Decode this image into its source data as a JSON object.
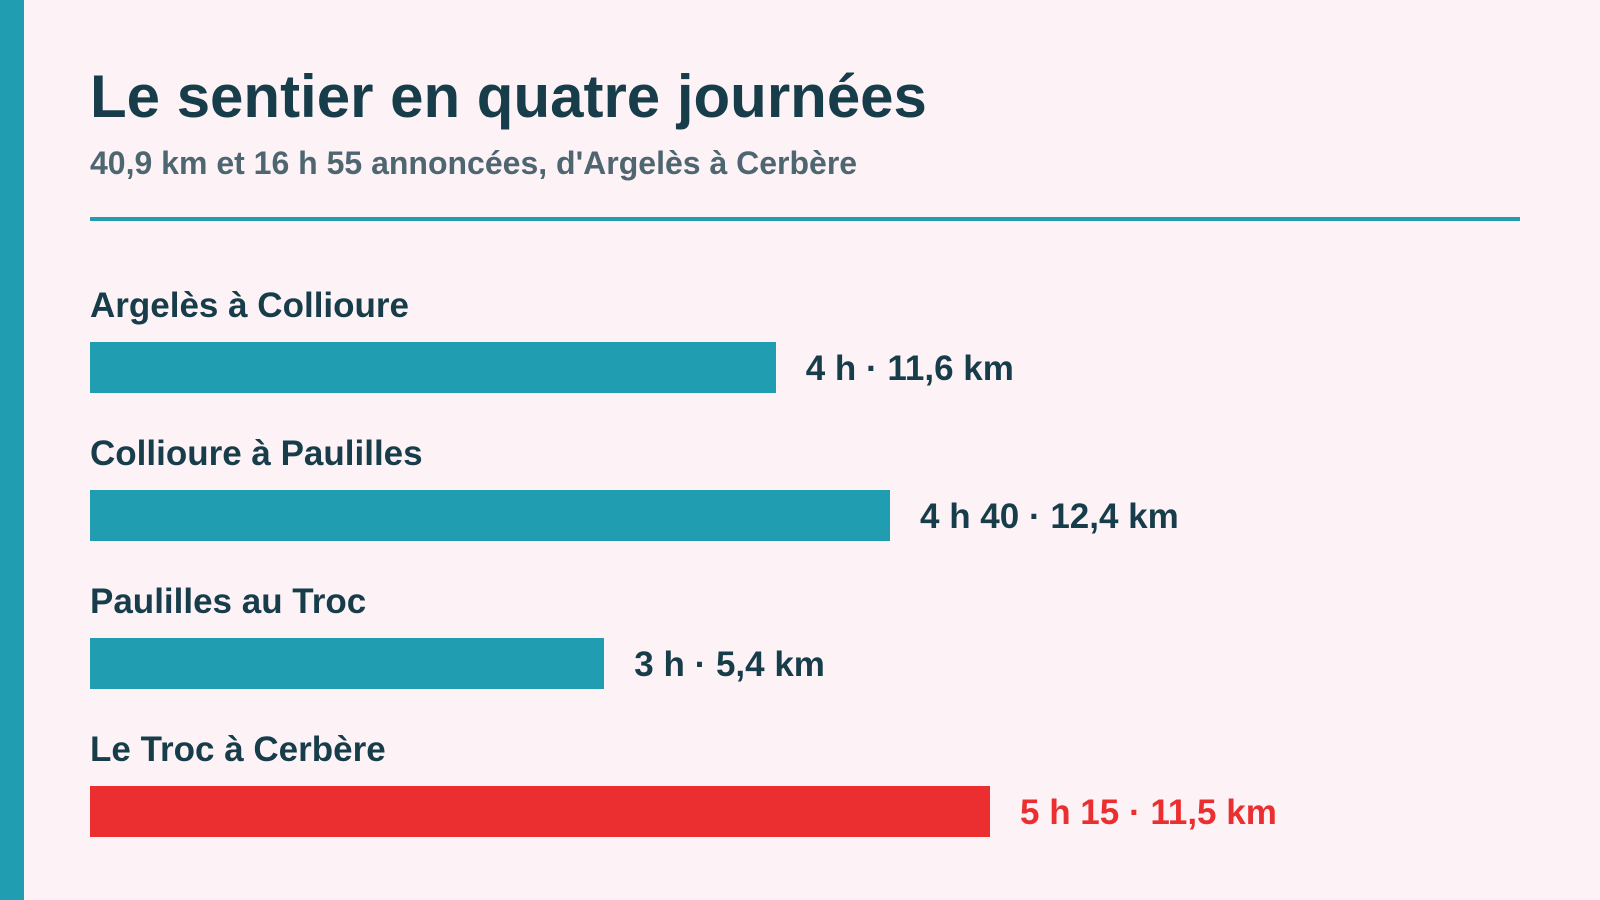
{
  "header": {
    "title": "Le sentier en quatre journées",
    "subtitle": "40,9 km et 16 h 55 annoncées, d'Argelès à Cerbère"
  },
  "colors": {
    "background": "#fdf3f6",
    "accent": "#219db1",
    "highlight": "#eb2f30",
    "text": "#173d4a",
    "subtext": "#4e6670"
  },
  "chart_data": {
    "type": "bar",
    "orientation": "horizontal",
    "title": "Le sentier en quatre journées",
    "subtitle": "40,9 km et 16 h 55 annoncées, d'Argelès à Cerbère",
    "categories": [
      "Argelès à Collioure",
      "Collioure à Paulilles",
      "Paulilles au Troc",
      "Le Troc à Cerbère"
    ],
    "series": [
      {
        "values_minutes": [
          240,
          280,
          180,
          315
        ],
        "distances_km": [
          11.6,
          12.4,
          5.4,
          11.5
        ]
      }
    ],
    "value_labels": [
      "4 h · 11,6 km",
      "4 h 40 · 12,4 km",
      "3 h · 5,4 km",
      "5 h 15 · 11,5 km"
    ],
    "highlight_index": 3,
    "xlim": [
      0,
      315
    ],
    "grid": false,
    "legend": "none"
  }
}
